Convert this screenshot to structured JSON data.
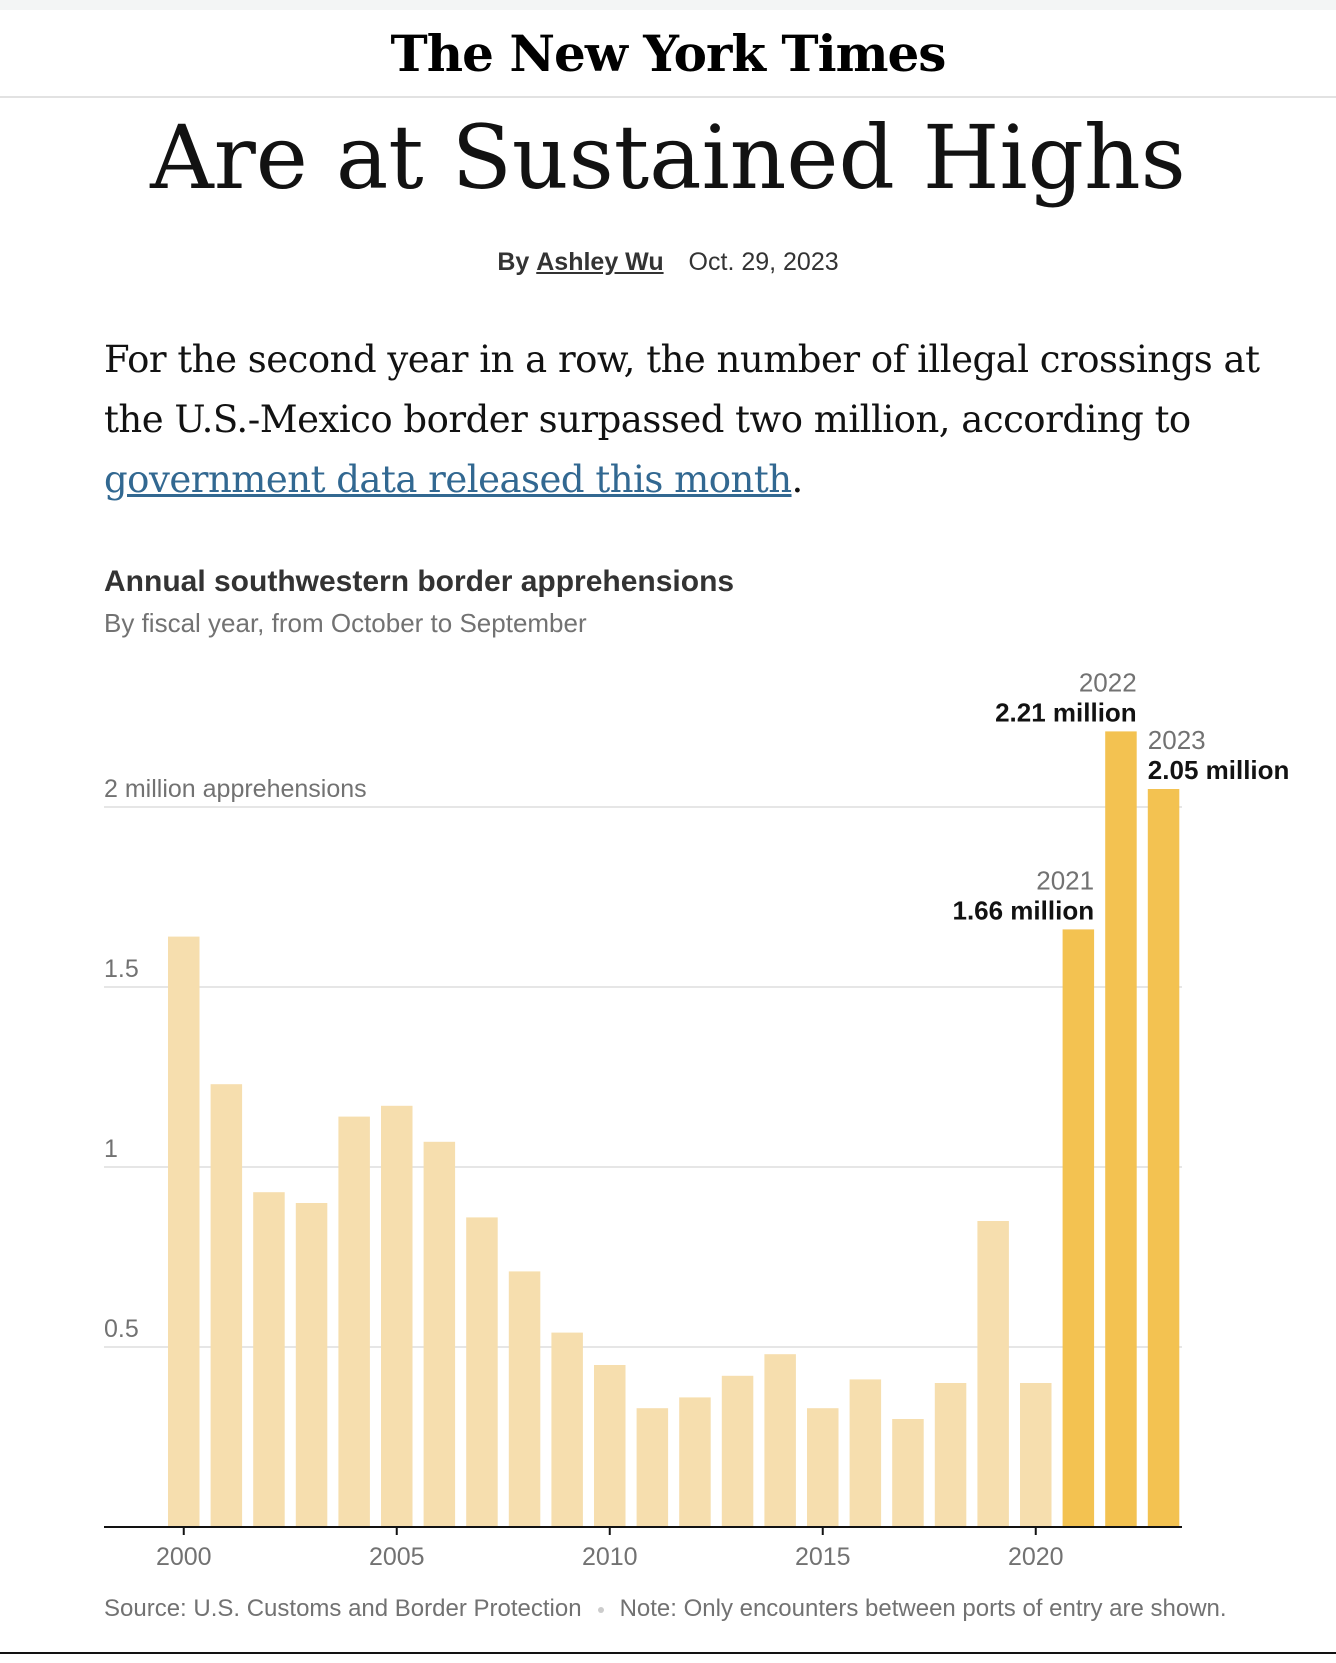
{
  "masthead": {
    "logo_text": "The New York Times"
  },
  "article": {
    "headline": "Are at Sustained Highs",
    "byline_prefix": "By",
    "author": "Ashley Wu",
    "date": "Oct. 29, 2023",
    "lede_text": "For the second year in a row, the number of illegal crossings at the U.S.-Mexico border surpassed two million, according to ",
    "lede_link": "government data released this month",
    "lede_end": "."
  },
  "chart_data": {
    "type": "bar",
    "title": "Annual southwestern border apprehensions",
    "subtitle": "By fiscal year, from October to September",
    "xlabel": "",
    "ylabel": "",
    "x": [
      2000,
      2001,
      2002,
      2003,
      2004,
      2005,
      2006,
      2007,
      2008,
      2009,
      2010,
      2011,
      2012,
      2013,
      2014,
      2015,
      2016,
      2017,
      2018,
      2019,
      2020,
      2021,
      2022,
      2023
    ],
    "values": [
      1.64,
      1.23,
      0.93,
      0.9,
      1.14,
      1.17,
      1.07,
      0.86,
      0.71,
      0.54,
      0.45,
      0.33,
      0.36,
      0.42,
      0.48,
      0.33,
      0.41,
      0.3,
      0.4,
      0.85,
      0.4,
      1.66,
      2.21,
      2.05
    ],
    "ylim": [
      0,
      2.2
    ],
    "y_ticks": [
      {
        "value": 0.5,
        "label": "0.5"
      },
      {
        "value": 1,
        "label": "1"
      },
      {
        "value": 1.5,
        "label": "1.5"
      },
      {
        "value": 2,
        "label": "2 million apprehensions"
      }
    ],
    "x_ticks": [
      2000,
      2005,
      2010,
      2015,
      2020
    ],
    "highlight_years": [
      2021,
      2022,
      2023
    ],
    "annotations": [
      {
        "year": 2021,
        "year_label": "2021",
        "value_label": "1.66 million"
      },
      {
        "year": 2022,
        "year_label": "2022",
        "value_label": "2.21 million"
      },
      {
        "year": 2023,
        "year_label": "2023",
        "value_label": "2.05 million"
      }
    ],
    "colors": {
      "base": "#f6deae",
      "highlight": "#f3c251",
      "grid": "#e6e6e6",
      "axis": "#121212"
    },
    "grid": true
  },
  "footer": {
    "source": "Source: U.S. Customs and Border Protection",
    "note": "Note: Only encounters between ports of entry are shown."
  }
}
